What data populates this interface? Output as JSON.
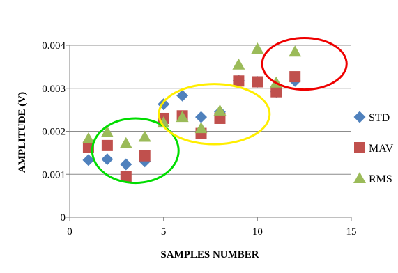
{
  "chart_data": {
    "type": "scatter",
    "title": "",
    "xlabel": "SAMPLES NUMBER",
    "ylabel": "AMPLITUDE (V)",
    "xlim": [
      0,
      15
    ],
    "ylim": [
      0,
      0.004
    ],
    "x_ticks": [
      "0",
      "5",
      "10",
      "15"
    ],
    "y_ticks": [
      "0",
      "0.001",
      "0.002",
      "0.003",
      "0.004"
    ],
    "grid": true,
    "legend_position": "right",
    "series": [
      {
        "name": "STD",
        "marker": "diamond",
        "color": "#4F81BD",
        "x": [
          1,
          2,
          3,
          4,
          5,
          6,
          7,
          8,
          9,
          10,
          11,
          12
        ],
        "y": [
          0.00133,
          0.00135,
          0.00123,
          0.0013,
          0.00263,
          0.00283,
          0.00233,
          0.00245,
          0.00318,
          0.00315,
          0.00292,
          0.00317
        ]
      },
      {
        "name": "MAV",
        "marker": "square",
        "color": "#C0504D",
        "x": [
          1,
          2,
          3,
          4,
          5,
          6,
          7,
          8,
          9,
          10,
          11,
          12
        ],
        "y": [
          0.00163,
          0.00167,
          0.00095,
          0.00143,
          0.0023,
          0.00236,
          0.00195,
          0.0023,
          0.00317,
          0.00315,
          0.00292,
          0.00327
        ]
      },
      {
        "name": "RMS",
        "marker": "triangle",
        "color": "#9BBB59",
        "x": [
          1,
          2,
          3,
          4,
          5,
          6,
          7,
          8,
          9,
          10,
          11,
          12
        ],
        "y": [
          0.00183,
          0.00198,
          0.00172,
          0.00187,
          0.0022,
          0.00233,
          0.00207,
          0.00248,
          0.00355,
          0.00392,
          0.00313,
          0.00385
        ]
      }
    ],
    "annotations": [
      {
        "shape": "ellipse",
        "color": "#00DD00",
        "cx": 3.5,
        "cy": 0.00155,
        "rx": 2.3,
        "ry": 0.00075
      },
      {
        "shape": "ellipse",
        "color": "#FFEE00",
        "cx": 7.7,
        "cy": 0.0024,
        "rx": 2.95,
        "ry": 0.0007
      },
      {
        "shape": "ellipse",
        "color": "#EE0000",
        "cx": 12.5,
        "cy": 0.00357,
        "rx": 2.25,
        "ry": 0.0006
      }
    ]
  }
}
